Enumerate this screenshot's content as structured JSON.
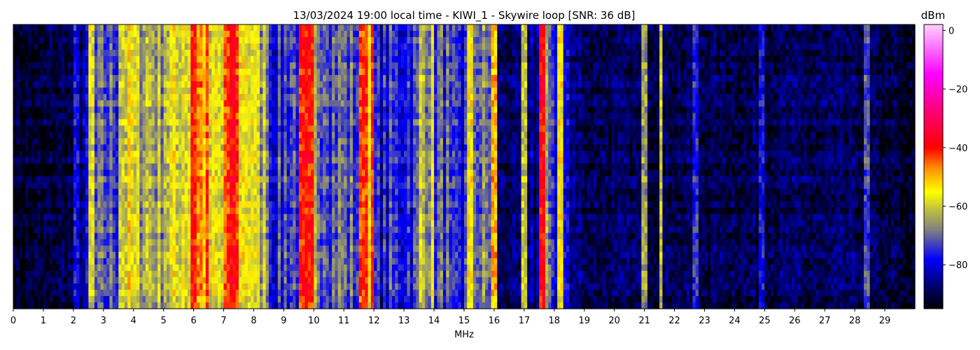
{
  "chart_data": {
    "type": "heatmap",
    "title": "13/03/2024 19:00 local time - KIWI_1 - Skywire loop [SNR: 36 dB]",
    "xlabel": "MHz",
    "xlim": [
      0,
      30
    ],
    "xticks": [
      "0",
      "1",
      "2",
      "3",
      "4",
      "5",
      "6",
      "7",
      "8",
      "9",
      "10",
      "11",
      "12",
      "13",
      "14",
      "15",
      "16",
      "17",
      "18",
      "19",
      "20",
      "21",
      "22",
      "23",
      "24",
      "25",
      "26",
      "27",
      "28",
      "29"
    ],
    "colorbar": {
      "label": "dBm",
      "range": [
        -95,
        2
      ],
      "ticks": [
        "0",
        "−20",
        "−40",
        "−60",
        "−80"
      ],
      "tick_values": [
        0,
        -20,
        -40,
        -60,
        -80
      ],
      "colormap": [
        {
          "v": -95,
          "c": "#000000"
        },
        {
          "v": -86,
          "c": "#000080"
        },
        {
          "v": -78,
          "c": "#0000ff"
        },
        {
          "v": -68,
          "c": "#808080"
        },
        {
          "v": -61,
          "c": "#c0c040"
        },
        {
          "v": -55,
          "c": "#ffff00"
        },
        {
          "v": -47,
          "c": "#ff9000"
        },
        {
          "v": -40,
          "c": "#ff0000"
        },
        {
          "v": -28,
          "c": "#ff0070"
        },
        {
          "v": -15,
          "c": "#ff00ff"
        },
        {
          "v": 2,
          "c": "#ffd0ff"
        }
      ]
    },
    "band_step_mhz": 0.5,
    "band_mean_dbm": [
      -92,
      -92,
      -91,
      -90,
      -83,
      -74,
      -72,
      -58,
      -62,
      -63,
      -60,
      -56,
      -48,
      -60,
      -45,
      -55,
      -62,
      -76,
      -72,
      -46,
      -66,
      -70,
      -72,
      -48,
      -78,
      -76,
      -74,
      -62,
      -72,
      -80,
      -68,
      -70,
      -88,
      -88,
      -84,
      -70,
      -80,
      -87,
      -89,
      -89,
      -89,
      -89,
      -89,
      -89,
      -89,
      -89,
      -89,
      -89,
      -89,
      -89,
      -89,
      -89,
      -89,
      -89,
      -89,
      -89,
      -89,
      -90,
      -91,
      -93
    ],
    "carriers": [
      {
        "mhz": 2.6,
        "dbm": -58
      },
      {
        "mhz": 6.0,
        "dbm": -40
      },
      {
        "mhz": 7.3,
        "dbm": -38
      },
      {
        "mhz": 9.8,
        "dbm": -40
      },
      {
        "mhz": 11.7,
        "dbm": -42
      },
      {
        "mhz": 15.2,
        "dbm": -55
      },
      {
        "mhz": 16.0,
        "dbm": -50
      },
      {
        "mhz": 17.0,
        "dbm": -60
      },
      {
        "mhz": 17.6,
        "dbm": -38
      },
      {
        "mhz": 18.2,
        "dbm": -55
      },
      {
        "mhz": 21.0,
        "dbm": -65
      },
      {
        "mhz": 21.55,
        "dbm": -60
      },
      {
        "mhz": 22.7,
        "dbm": -75
      },
      {
        "mhz": 24.9,
        "dbm": -78
      },
      {
        "mhz": 28.4,
        "dbm": -72
      }
    ]
  }
}
